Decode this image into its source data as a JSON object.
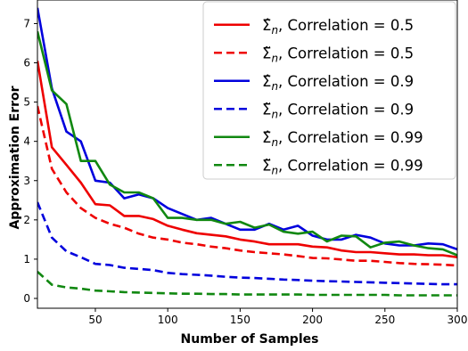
{
  "chart_data": {
    "type": "line",
    "xlabel": "Number of Samples",
    "ylabel": "Approximation Error",
    "xlim": [
      10,
      300
    ],
    "ylim": [
      -0.25,
      7.6
    ],
    "xticks": [
      50,
      100,
      150,
      200,
      250,
      300
    ],
    "yticks": [
      0,
      1,
      2,
      3,
      4,
      5,
      6,
      7
    ],
    "legend_position": "top-right",
    "grid": false,
    "x": [
      10,
      20,
      30,
      40,
      50,
      60,
      70,
      80,
      90,
      100,
      110,
      120,
      130,
      140,
      150,
      160,
      170,
      180,
      190,
      200,
      210,
      220,
      230,
      240,
      250,
      260,
      270,
      280,
      290,
      300
    ],
    "series": [
      {
        "symbol": "Σ̂",
        "sub": "n",
        "suffix": ", Correlation = 0.5",
        "color": "#ee0000",
        "dashed": false,
        "values": [
          6.05,
          3.85,
          3.4,
          2.95,
          2.4,
          2.37,
          2.1,
          2.1,
          2.02,
          1.85,
          1.75,
          1.66,
          1.62,
          1.58,
          1.5,
          1.45,
          1.38,
          1.38,
          1.38,
          1.32,
          1.3,
          1.22,
          1.18,
          1.18,
          1.15,
          1.12,
          1.12,
          1.1,
          1.1,
          1.05
        ]
      },
      {
        "symbol": "Σ̃",
        "sub": "n",
        "suffix": ", Correlation = 0.5",
        "color": "#ee0000",
        "dashed": true,
        "values": [
          4.9,
          3.3,
          2.7,
          2.3,
          2.05,
          1.9,
          1.8,
          1.65,
          1.55,
          1.5,
          1.42,
          1.38,
          1.32,
          1.28,
          1.22,
          1.18,
          1.15,
          1.12,
          1.08,
          1.03,
          1.02,
          0.99,
          0.96,
          0.96,
          0.93,
          0.9,
          0.88,
          0.87,
          0.86,
          0.84
        ]
      },
      {
        "symbol": "Σ̂",
        "sub": "n",
        "suffix": ", Correlation = 0.9",
        "color": "#0000dd",
        "dashed": false,
        "values": [
          7.4,
          5.35,
          4.25,
          4.0,
          3.0,
          2.95,
          2.55,
          2.65,
          2.55,
          2.3,
          2.15,
          2.0,
          2.05,
          1.9,
          1.75,
          1.75,
          1.9,
          1.75,
          1.85,
          1.6,
          1.5,
          1.5,
          1.62,
          1.55,
          1.4,
          1.35,
          1.35,
          1.4,
          1.38,
          1.25
        ]
      },
      {
        "symbol": "Σ̃",
        "sub": "n",
        "suffix": ", Correlation = 0.9",
        "color": "#0000dd",
        "dashed": true,
        "values": [
          2.45,
          1.55,
          1.2,
          1.05,
          0.88,
          0.85,
          0.78,
          0.75,
          0.72,
          0.65,
          0.62,
          0.6,
          0.58,
          0.55,
          0.53,
          0.52,
          0.5,
          0.48,
          0.47,
          0.45,
          0.44,
          0.43,
          0.42,
          0.41,
          0.4,
          0.39,
          0.38,
          0.37,
          0.36,
          0.36
        ]
      },
      {
        "symbol": "Σ̂",
        "sub": "n",
        "suffix": ", Correlation = 0.99",
        "color": "#118811",
        "dashed": false,
        "values": [
          6.8,
          5.3,
          4.95,
          3.5,
          3.5,
          2.9,
          2.7,
          2.7,
          2.55,
          2.05,
          2.05,
          2.0,
          2.0,
          1.9,
          1.95,
          1.8,
          1.88,
          1.7,
          1.65,
          1.7,
          1.45,
          1.6,
          1.58,
          1.3,
          1.42,
          1.45,
          1.35,
          1.28,
          1.25,
          1.1
        ]
      },
      {
        "symbol": "Σ̃",
        "sub": "n",
        "suffix": ", Correlation = 0.99",
        "color": "#118811",
        "dashed": true,
        "values": [
          0.68,
          0.35,
          0.28,
          0.25,
          0.2,
          0.18,
          0.16,
          0.15,
          0.14,
          0.13,
          0.12,
          0.12,
          0.11,
          0.11,
          0.1,
          0.1,
          0.1,
          0.1,
          0.1,
          0.09,
          0.09,
          0.09,
          0.09,
          0.09,
          0.09,
          0.08,
          0.08,
          0.08,
          0.08,
          0.08
        ]
      }
    ]
  }
}
